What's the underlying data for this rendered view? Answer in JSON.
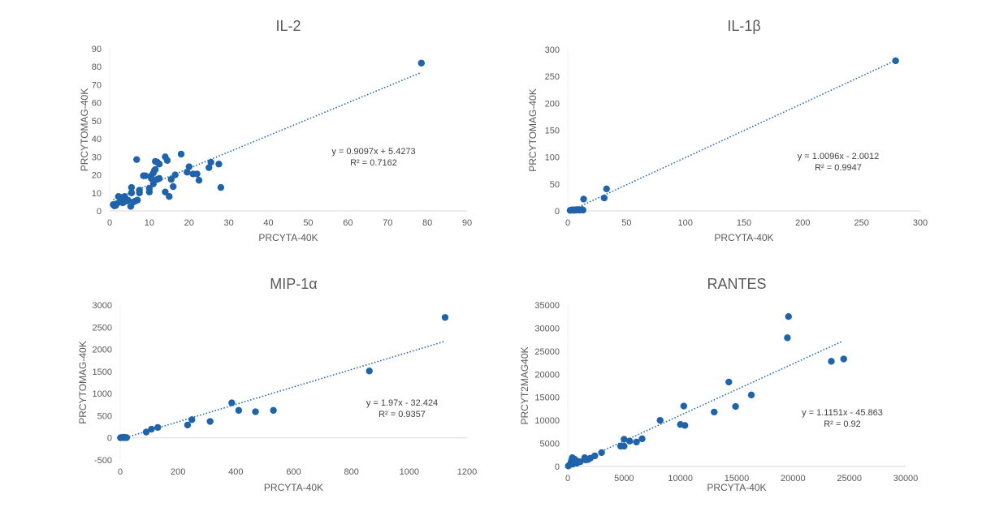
{
  "chart_data": [
    {
      "type": "scatter",
      "title": "IL-2",
      "xlabel": "PRCYTA-40K",
      "ylabel": "PRCYTOMAG-40K",
      "xlim": [
        0,
        90
      ],
      "ylim": [
        0,
        90
      ],
      "xticks": [
        0,
        10,
        20,
        30,
        40,
        50,
        60,
        70,
        80,
        90
      ],
      "yticks": [
        0,
        10,
        20,
        30,
        40,
        50,
        60,
        70,
        80,
        90
      ],
      "grid": false,
      "marker_color": "#1f63aa",
      "trendline": {
        "slope": 0.9097,
        "intercept": 5.4273,
        "x_range": [
          0.9,
          78.5
        ],
        "equation": "y = 0.9097x + 5.4273",
        "r2": "R² = 0.7162"
      },
      "points": [
        [
          0.9,
          3.5
        ],
        [
          1.2,
          2.8
        ],
        [
          1.5,
          3
        ],
        [
          1.8,
          4
        ],
        [
          2.2,
          8
        ],
        [
          2.6,
          5
        ],
        [
          3,
          7.5
        ],
        [
          3.3,
          4.5
        ],
        [
          3.6,
          5
        ],
        [
          3.8,
          8
        ],
        [
          4,
          6
        ],
        [
          4.3,
          5.5
        ],
        [
          4.6,
          6
        ],
        [
          5.3,
          2.5
        ],
        [
          5.5,
          10
        ],
        [
          5.5,
          13
        ],
        [
          6,
          5
        ],
        [
          6.5,
          5.5
        ],
        [
          7,
          6
        ],
        [
          6.8,
          28.5
        ],
        [
          7.5,
          11.5
        ],
        [
          7.5,
          10
        ],
        [
          8.5,
          19.5
        ],
        [
          9,
          19.5
        ],
        [
          10,
          10.5
        ],
        [
          10,
          12.5
        ],
        [
          10.5,
          18
        ],
        [
          10.5,
          19.5
        ],
        [
          11,
          15
        ],
        [
          11,
          21
        ],
        [
          11.3,
          22.5
        ],
        [
          11.5,
          27.5
        ],
        [
          11.5,
          23
        ],
        [
          12,
          27
        ],
        [
          12,
          17.5
        ],
        [
          12.5,
          18
        ],
        [
          12.5,
          26
        ],
        [
          14,
          30
        ],
        [
          14,
          10.5
        ],
        [
          14.5,
          28
        ],
        [
          15,
          8
        ],
        [
          15.5,
          17.5
        ],
        [
          16,
          13.5
        ],
        [
          16.5,
          20
        ],
        [
          18,
          31.5
        ],
        [
          19.5,
          21.5
        ],
        [
          20,
          24.5
        ],
        [
          21,
          20.5
        ],
        [
          22,
          20.5
        ],
        [
          22.5,
          17
        ],
        [
          25,
          24
        ],
        [
          25.5,
          27
        ],
        [
          27.5,
          26
        ],
        [
          28,
          13
        ],
        [
          78.5,
          82
        ]
      ]
    },
    {
      "type": "scatter",
      "title": "IL-1β",
      "xlabel": "PRCYTA-40K",
      "ylabel": "PRCYTOMAG-40K",
      "xlim": [
        0,
        300
      ],
      "ylim": [
        0,
        300
      ],
      "xticks": [
        0,
        50,
        100,
        150,
        200,
        250,
        300
      ],
      "yticks": [
        0,
        50,
        100,
        150,
        200,
        250,
        300
      ],
      "grid": false,
      "marker_color": "#1f63aa",
      "trendline": {
        "slope": 1.0096,
        "intercept": -2.0012,
        "x_range": [
          2,
          279
        ],
        "equation": "y = 1.0096x - 2.0012",
        "r2": "R² = 0.9947"
      },
      "points": [
        [
          2,
          1
        ],
        [
          3,
          1.5
        ],
        [
          4,
          2
        ],
        [
          5,
          1
        ],
        [
          6,
          2
        ],
        [
          7,
          1.5
        ],
        [
          8,
          2.5
        ],
        [
          9,
          2
        ],
        [
          10,
          1.5
        ],
        [
          11,
          2
        ],
        [
          12,
          2.5
        ],
        [
          13,
          1.5
        ],
        [
          13.5,
          22
        ],
        [
          31,
          24
        ],
        [
          33,
          41
        ],
        [
          279,
          279
        ]
      ]
    },
    {
      "type": "scatter",
      "title": "MIP-1α",
      "xlabel": "PRCYTA-40K",
      "ylabel": "PRCYTOMAG-40K",
      "xlim": [
        0,
        1200
      ],
      "ylim": [
        -500,
        3000
      ],
      "xticks": [
        0,
        200,
        400,
        600,
        800,
        1000,
        1200
      ],
      "yticks": [
        -500,
        0,
        500,
        1000,
        1500,
        2000,
        2500,
        3000
      ],
      "grid": false,
      "marker_color": "#1f63aa",
      "trendline": {
        "slope": 1.97,
        "intercept": -32.424,
        "x_range": [
          0,
          1124
        ],
        "equation": "y = 1.97x - 32.424",
        "r2": "R² = 0.9357"
      },
      "points": [
        [
          1,
          2
        ],
        [
          4,
          8
        ],
        [
          8,
          5
        ],
        [
          12,
          15
        ],
        [
          15,
          3
        ],
        [
          18,
          10
        ],
        [
          22,
          4
        ],
        [
          90,
          130
        ],
        [
          108,
          195
        ],
        [
          130,
          235
        ],
        [
          233,
          290
        ],
        [
          248,
          410
        ],
        [
          311,
          370
        ],
        [
          386,
          790
        ],
        [
          410,
          620
        ],
        [
          468,
          590
        ],
        [
          530,
          620
        ],
        [
          862,
          1510
        ],
        [
          1124,
          2720
        ]
      ]
    },
    {
      "type": "scatter",
      "title": "RANTES",
      "xlabel": "PRCYTA-40K",
      "ylabel": "PRCYT2MAG40K",
      "xlim": [
        0,
        30000
      ],
      "ylim": [
        0,
        35000
      ],
      "xticks": [
        0,
        5000,
        10000,
        15000,
        20000,
        25000,
        30000
      ],
      "yticks": [
        0,
        5000,
        10000,
        15000,
        20000,
        25000,
        30000,
        35000
      ],
      "grid": false,
      "marker_color": "#1f63aa",
      "trendline": {
        "slope": 1.1151,
        "intercept": -45.863,
        "x_range": [
          0,
          24400
        ],
        "equation": "y = 1.1151x - 45.863",
        "r2": "R² = 0.92"
      },
      "points": [
        [
          50,
          100
        ],
        [
          150,
          300
        ],
        [
          250,
          600
        ],
        [
          300,
          1000
        ],
        [
          350,
          1400
        ],
        [
          400,
          1900
        ],
        [
          450,
          500
        ],
        [
          500,
          1200
        ],
        [
          600,
          1600
        ],
        [
          700,
          900
        ],
        [
          800,
          700
        ],
        [
          900,
          1100
        ],
        [
          1100,
          1000
        ],
        [
          1500,
          1900
        ],
        [
          1600,
          1400
        ],
        [
          1800,
          1500
        ],
        [
          2000,
          1800
        ],
        [
          2400,
          2300
        ],
        [
          3000,
          3000
        ],
        [
          4700,
          4400
        ],
        [
          5000,
          4400
        ],
        [
          5000,
          5900
        ],
        [
          5500,
          5500
        ],
        [
          6100,
          5300
        ],
        [
          6600,
          6000
        ],
        [
          8200,
          10000
        ],
        [
          10000,
          9100
        ],
        [
          10300,
          13100
        ],
        [
          10400,
          8900
        ],
        [
          13000,
          11800
        ],
        [
          14300,
          18300
        ],
        [
          14900,
          13000
        ],
        [
          16300,
          15500
        ],
        [
          19500,
          27900
        ],
        [
          19600,
          32500
        ],
        [
          23400,
          22800
        ],
        [
          24500,
          23300
        ]
      ]
    }
  ]
}
